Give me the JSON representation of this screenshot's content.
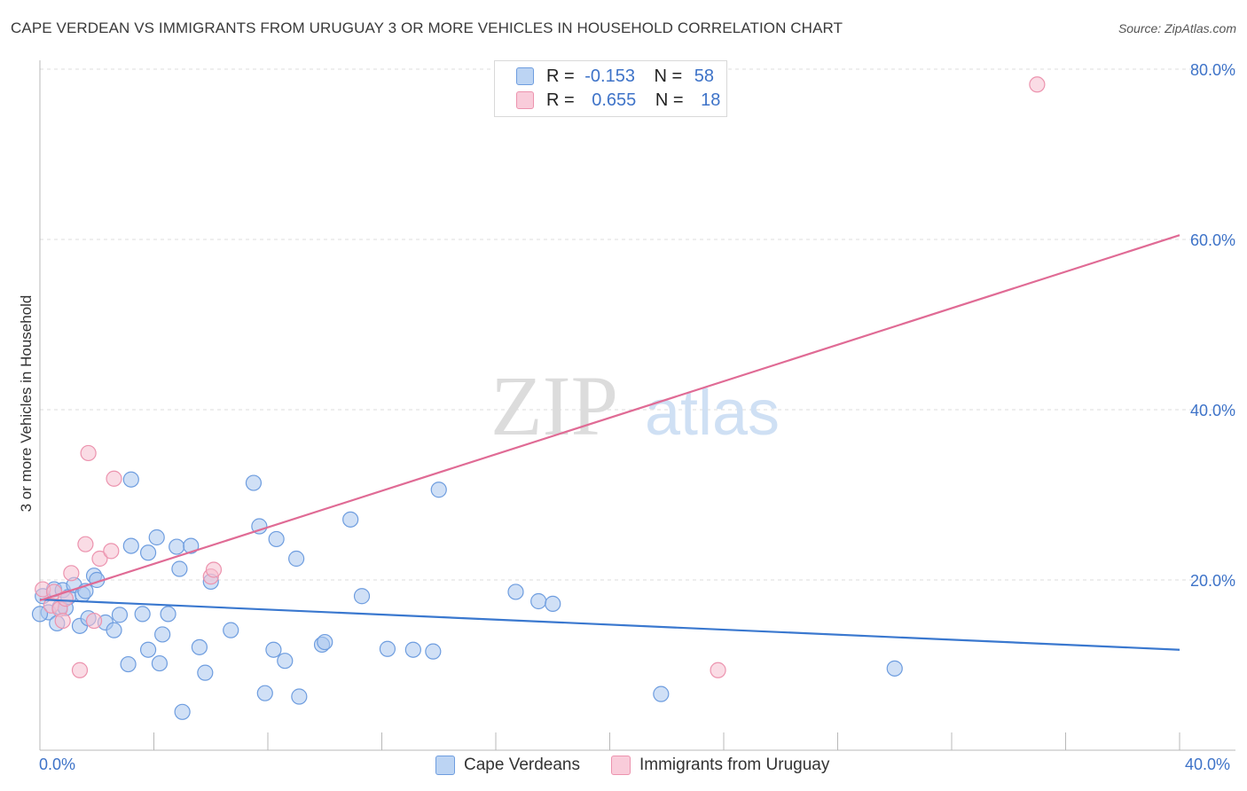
{
  "title": "CAPE VERDEAN VS IMMIGRANTS FROM URUGUAY 3 OR MORE VEHICLES IN HOUSEHOLD CORRELATION CHART",
  "source": "Source: ZipAtlas.com",
  "watermark": {
    "zip": "ZIP",
    "atlas": "atlas"
  },
  "legend_top": {
    "rows": [
      {
        "r_label": "R =",
        "r_value": "-0.153",
        "n_label": "N =",
        "n_value": "58"
      },
      {
        "r_label": "R =",
        "r_value": "0.655",
        "n_label": "N =",
        "n_value": "18"
      }
    ]
  },
  "colors": {
    "blue_fill": "#a9c6ee",
    "blue_stroke": "#6e9ddf",
    "blue_line": "#3a78cf",
    "pink_fill": "#f6bfd0",
    "pink_stroke": "#ec93ae",
    "pink_line": "#e06b95",
    "grid": "#dcdcdc",
    "tick_text": "#3e73c8"
  },
  "chart_data": {
    "type": "scatter",
    "title": "CAPE VERDEAN VS IMMIGRANTS FROM URUGUAY 3 OR MORE VEHICLES IN HOUSEHOLD CORRELATION CHART",
    "xlabel": "",
    "ylabel": "3 or more Vehicles in Household",
    "xlim": [
      0,
      40
    ],
    "ylim": [
      0,
      80
    ],
    "x_tick_labels": [
      "0.0%",
      "40.0%"
    ],
    "y_ticks": [
      20,
      40,
      60,
      80
    ],
    "y_tick_labels": [
      "20.0%",
      "40.0%",
      "60.0%",
      "80.0%"
    ],
    "grid": "horizontal dashed",
    "legend": "bottom",
    "series": [
      {
        "name": "Cape Verdeans",
        "r": -0.153,
        "n": 58,
        "trend": [
          [
            0,
            17.7
          ],
          [
            40,
            11.8
          ]
        ],
        "points": [
          [
            0.1,
            18.1
          ],
          [
            0.3,
            16.2
          ],
          [
            0.5,
            18.9
          ],
          [
            0.6,
            14.9
          ],
          [
            0.7,
            16.8
          ],
          [
            0.8,
            18.8
          ],
          [
            0.9,
            16.7
          ],
          [
            1.0,
            18.0
          ],
          [
            1.2,
            19.4
          ],
          [
            1.4,
            14.6
          ],
          [
            1.5,
            18.3
          ],
          [
            1.6,
            18.7
          ],
          [
            1.7,
            15.5
          ],
          [
            1.9,
            20.5
          ],
          [
            2.0,
            20.0
          ],
          [
            2.3,
            15.0
          ],
          [
            2.6,
            14.1
          ],
          [
            2.8,
            15.9
          ],
          [
            3.1,
            10.1
          ],
          [
            3.2,
            24.0
          ],
          [
            3.2,
            31.8
          ],
          [
            3.6,
            16.0
          ],
          [
            3.8,
            11.8
          ],
          [
            3.8,
            23.2
          ],
          [
            4.1,
            25.0
          ],
          [
            4.2,
            10.2
          ],
          [
            4.3,
            13.6
          ],
          [
            4.5,
            16.0
          ],
          [
            4.8,
            23.9
          ],
          [
            4.9,
            21.3
          ],
          [
            5.0,
            4.5
          ],
          [
            5.3,
            24.0
          ],
          [
            5.6,
            12.1
          ],
          [
            5.8,
            9.1
          ],
          [
            6.0,
            19.8
          ],
          [
            6.7,
            14.1
          ],
          [
            7.5,
            31.4
          ],
          [
            7.7,
            26.3
          ],
          [
            7.9,
            6.7
          ],
          [
            8.2,
            11.8
          ],
          [
            8.3,
            24.8
          ],
          [
            8.6,
            10.5
          ],
          [
            9.0,
            22.5
          ],
          [
            9.1,
            6.3
          ],
          [
            9.9,
            12.4
          ],
          [
            10.0,
            12.7
          ],
          [
            10.9,
            27.1
          ],
          [
            11.3,
            18.1
          ],
          [
            12.2,
            11.9
          ],
          [
            13.1,
            11.8
          ],
          [
            13.8,
            11.6
          ],
          [
            14.0,
            30.6
          ],
          [
            16.7,
            18.6
          ],
          [
            17.5,
            17.5
          ],
          [
            18.0,
            17.2
          ],
          [
            21.8,
            6.6
          ],
          [
            30.0,
            9.6
          ],
          [
            0.0,
            16.0
          ]
        ]
      },
      {
        "name": "Immigrants from Uruguay",
        "r": 0.655,
        "n": 18,
        "trend": [
          [
            0,
            17.6
          ],
          [
            40,
            60.5
          ]
        ],
        "points": [
          [
            0.1,
            18.9
          ],
          [
            0.4,
            17.0
          ],
          [
            0.5,
            18.6
          ],
          [
            0.7,
            16.6
          ],
          [
            0.8,
            15.2
          ],
          [
            0.9,
            17.8
          ],
          [
            1.1,
            20.8
          ],
          [
            1.4,
            9.4
          ],
          [
            1.6,
            24.2
          ],
          [
            1.7,
            34.9
          ],
          [
            1.9,
            15.2
          ],
          [
            2.1,
            22.5
          ],
          [
            2.5,
            23.4
          ],
          [
            2.6,
            31.9
          ],
          [
            6.0,
            20.4
          ],
          [
            6.1,
            21.2
          ],
          [
            23.8,
            9.4
          ],
          [
            35.0,
            78.2
          ]
        ]
      }
    ]
  },
  "legend_bottom": {
    "items": [
      "Cape Verdeans",
      "Immigrants from Uruguay"
    ]
  }
}
